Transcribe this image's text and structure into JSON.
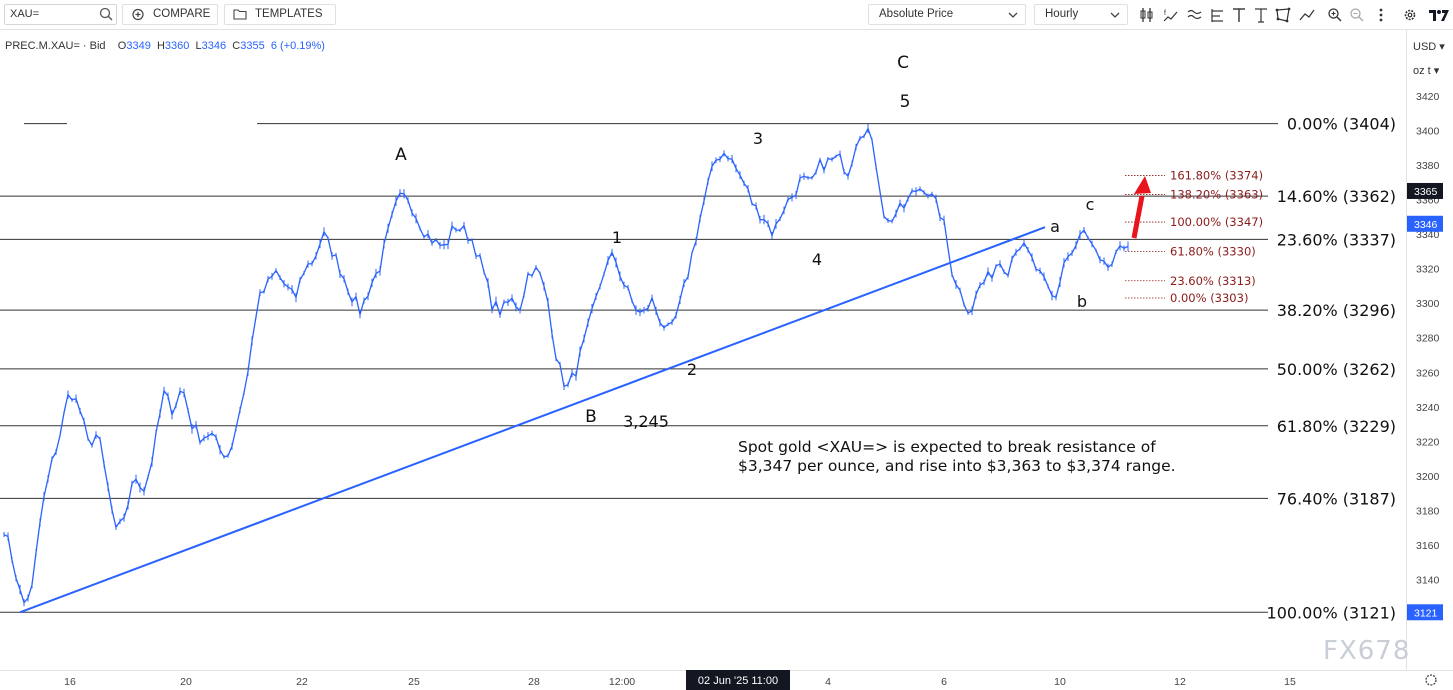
{
  "toolbar": {
    "symbol": "XAU=",
    "compare_label": "COMPARE",
    "templates_label": "TEMPLATES",
    "price_type": "Absolute Price",
    "interval": "Hourly",
    "icons": [
      "bar-chart-icon",
      "indicator-icon",
      "wave-icon",
      "fibonacci-icon",
      "text-tool-icon",
      "cross-tool-icon",
      "shapes-icon",
      "zoom-in-icon",
      "zoom-out-icon",
      "more-icon",
      "settings-icon",
      "brand-icon"
    ]
  },
  "ohlc": {
    "instrument": "PREC.M.XAU= · Bid",
    "open": "3349",
    "high": "3360",
    "low": "3346",
    "close": "3355",
    "change": "6 (+0.19%)"
  },
  "axis": {
    "currency": "USD",
    "unit": "oz t",
    "last_price": "3365",
    "current_price": "3346",
    "low_marker": "3121",
    "crosshair_label": "02 Jun '25   11:00"
  },
  "annotation": "Spot gold <XAU=> is expected to break resistance of $3,347 per ounce, and rise into $3,363 to $3,374 range.",
  "watermark": "FX678",
  "colors": {
    "candle": "#2962ff",
    "trendline": "#2962ff",
    "fib_small": "#8b1a1a",
    "arrow": "#e8141e",
    "grid_line": "#333333"
  },
  "chart_data": {
    "type": "line",
    "title": "",
    "xlabel": "",
    "ylabel": "",
    "ylim": [
      3105,
      3432
    ],
    "price_ticks": [
      3420,
      3400,
      3380,
      3360,
      3340,
      3320,
      3300,
      3280,
      3260,
      3240,
      3220,
      3200,
      3180,
      3160,
      3140,
      3120
    ],
    "time_ticks": [
      "16",
      "20",
      "22",
      "25",
      "28",
      "12:00",
      "4",
      "6",
      "10",
      "12",
      "15"
    ],
    "series": [
      {
        "values": [
          3170,
          3150,
          3125,
          3135,
          3180,
          3205,
          3225,
          3250,
          3240,
          3218,
          3225,
          3195,
          3165,
          3180,
          3200,
          3192,
          3215,
          3248,
          3238,
          3252,
          3230,
          3222,
          3225,
          3215,
          3212,
          3235,
          3260,
          3300,
          3310,
          3318,
          3310,
          3302,
          3320,
          3325,
          3340,
          3330,
          3318,
          3305,
          3295,
          3310,
          3320,
          3342,
          3360,
          3362,
          3350,
          3340,
          3335,
          3332,
          3345,
          3342,
          3336,
          3320,
          3300,
          3295,
          3302,
          3298,
          3320,
          3318,
          3300,
          3265,
          3250,
          3262,
          3280,
          3300,
          3320,
          3328,
          3312,
          3300,
          3292,
          3302,
          3290,
          3282,
          3298,
          3320,
          3345,
          3368,
          3385,
          3388,
          3378,
          3368,
          3355,
          3350,
          3340,
          3355,
          3362,
          3372,
          3368,
          3380,
          3382,
          3384,
          3376,
          3398,
          3402,
          3380,
          3345,
          3352,
          3356,
          3365,
          3368,
          3360,
          3350,
          3320,
          3305,
          3295,
          3310,
          3315,
          3325,
          3320,
          3335,
          3330,
          3320,
          3310,
          3300,
          3325,
          3330,
          3342,
          3332,
          3320,
          3322,
          3330,
          3338
        ]
      }
    ],
    "trendline": {
      "from": [
        0,
        3121
      ],
      "to": [
        1045,
        3344
      ]
    },
    "fib_levels": [
      {
        "label": "0.00% (3404)",
        "price": 3404
      },
      {
        "label": "14.60% (3362)",
        "price": 3362
      },
      {
        "label": "23.60% (3337)",
        "price": 3337
      },
      {
        "label": "38.20% (3296)",
        "price": 3296
      },
      {
        "label": "50.00% (3262)",
        "price": 3262
      },
      {
        "label": "61.80% (3229)",
        "price": 3229
      },
      {
        "label": "76.40% (3187)",
        "price": 3187
      },
      {
        "label": "100.00% (3121)",
        "price": 3121
      }
    ],
    "fib_extension": [
      {
        "label": "161.80% (3374)",
        "price": 3374
      },
      {
        "label": "138.20% (3363)",
        "price": 3363
      },
      {
        "label": "100.00% (3347)",
        "price": 3347
      },
      {
        "label": "61.80% (3330)",
        "price": 3330
      },
      {
        "label": "23.60% (3313)",
        "price": 3313
      },
      {
        "label": "0.00% (3303)",
        "price": 3303
      }
    ],
    "wave_labels": [
      "C",
      "5",
      "A",
      "3",
      "1",
      "4",
      "a",
      "c",
      "b",
      "2",
      "B",
      "3,245"
    ]
  }
}
